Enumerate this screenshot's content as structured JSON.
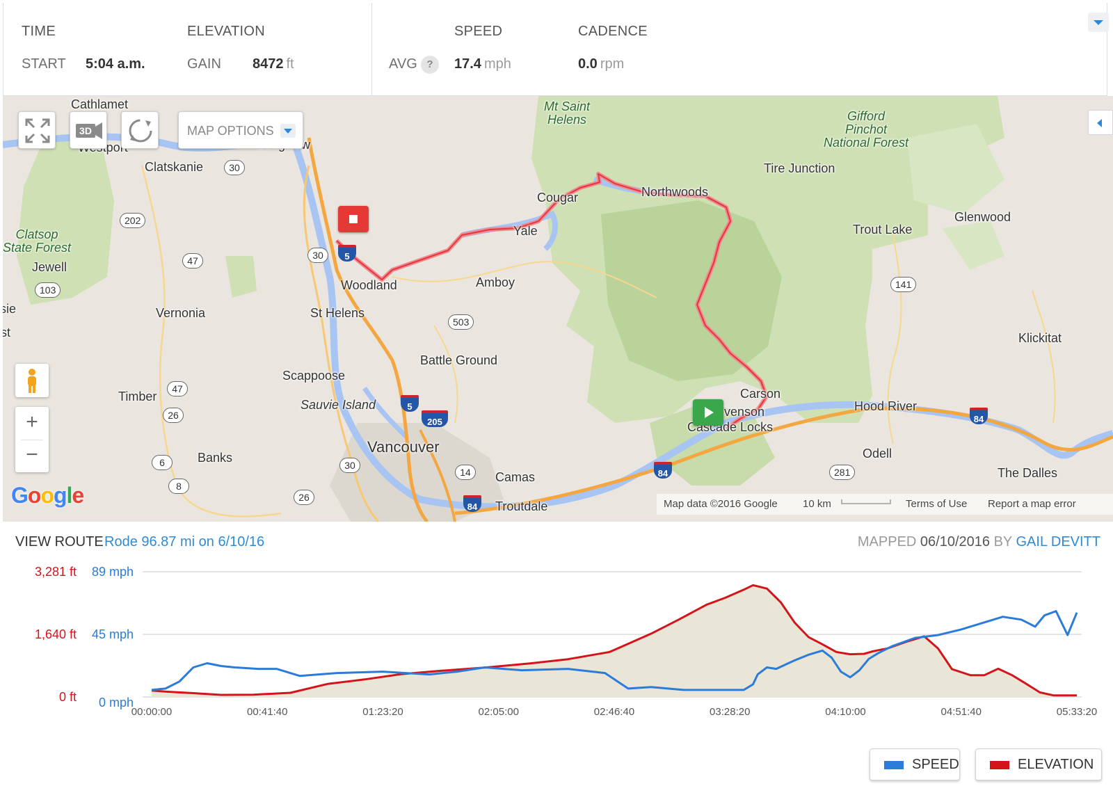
{
  "stats": {
    "time": {
      "header": "TIME",
      "label": "START",
      "value": "5:04 a.m."
    },
    "elevation": {
      "header": "ELEVATION",
      "label": "GAIN",
      "value": "8472",
      "unit": "ft"
    },
    "speed": {
      "header": "SPEED",
      "label": "AVG",
      "help": "?",
      "value": "17.4",
      "unit": "mph"
    },
    "cadence": {
      "header": "CADENCE",
      "value": "0.0",
      "unit": "rpm"
    }
  },
  "map": {
    "options_label": "MAP OPTIONS",
    "btn_3d": "3D",
    "zoom_in": "+",
    "zoom_out": "−",
    "logo": [
      "G",
      "o",
      "o",
      "g",
      "l",
      "e"
    ],
    "logo_colors": [
      "#4285f4",
      "#ea4335",
      "#fbbc05",
      "#4285f4",
      "#34a853",
      "#ea4335"
    ],
    "footer": {
      "data": "Map data ©2016 Google",
      "scale": "10 km",
      "terms": "Terms of Use",
      "report": "Report a map error"
    },
    "places": [
      {
        "id": "cathlamet",
        "text": "Cathlamet"
      },
      {
        "id": "westport",
        "text": "Westport"
      },
      {
        "id": "longview",
        "text": "Longview"
      },
      {
        "id": "clatskanie",
        "text": "Clatskanie"
      },
      {
        "id": "mt-saint-helens",
        "text": "Mt Saint\nHelens"
      },
      {
        "id": "gifford-pinchot",
        "text": "Gifford\nPinchot\nNational Forest"
      },
      {
        "id": "tire-junction",
        "text": "Tire Junction"
      },
      {
        "id": "cougar",
        "text": "Cougar"
      },
      {
        "id": "northwoods",
        "text": "Northwoods"
      },
      {
        "id": "yale",
        "text": "Yale"
      },
      {
        "id": "trout-lake",
        "text": "Trout Lake"
      },
      {
        "id": "glenwood",
        "text": "Glenwood"
      },
      {
        "id": "clatsop",
        "text": "Clatsop\nState Forest"
      },
      {
        "id": "jewell",
        "text": "Jewell"
      },
      {
        "id": "woodland",
        "text": "Woodland"
      },
      {
        "id": "amboy",
        "text": "Amboy"
      },
      {
        "id": "elsie",
        "text": "Elsie"
      },
      {
        "id": "vernonia",
        "text": "Vernonia"
      },
      {
        "id": "st-helens",
        "text": "St Helens"
      },
      {
        "id": "klickitat",
        "text": "Klickitat"
      },
      {
        "id": "mist",
        "text": "Mist"
      },
      {
        "id": "battle-ground",
        "text": "Battle Ground"
      },
      {
        "id": "scappoose",
        "text": "Scappoose"
      },
      {
        "id": "timber",
        "text": "Timber"
      },
      {
        "id": "carson",
        "text": "Carson"
      },
      {
        "id": "sauvie-island",
        "text": "Sauvie Island"
      },
      {
        "id": "stevenson",
        "text": "Stevenson"
      },
      {
        "id": "hood-river",
        "text": "Hood River"
      },
      {
        "id": "cascade-locks",
        "text": "Cascade Locks"
      },
      {
        "id": "vancouver",
        "text": "Vancouver"
      },
      {
        "id": "banks",
        "text": "Banks"
      },
      {
        "id": "odell",
        "text": "Odell"
      },
      {
        "id": "camas",
        "text": "Camas"
      },
      {
        "id": "the-dalles",
        "text": "The Dalles"
      },
      {
        "id": "troutdale",
        "text": "Troutdale"
      }
    ],
    "shields": [
      {
        "id": "us30-a",
        "text": "30"
      },
      {
        "id": "or202",
        "text": "202"
      },
      {
        "id": "or47-a",
        "text": "47"
      },
      {
        "id": "or103",
        "text": "103"
      },
      {
        "id": "us30-b",
        "text": "30"
      },
      {
        "id": "wa503",
        "text": "503"
      },
      {
        "id": "wa141",
        "text": "141"
      },
      {
        "id": "or47-b",
        "text": "47"
      },
      {
        "id": "us26-a",
        "text": "26"
      },
      {
        "id": "or6",
        "text": "6"
      },
      {
        "id": "or8",
        "text": "8"
      },
      {
        "id": "us30-c",
        "text": "30"
      },
      {
        "id": "wa14",
        "text": "14"
      },
      {
        "id": "or281",
        "text": "281"
      },
      {
        "id": "us26-b",
        "text": "26"
      }
    ],
    "interstates": [
      {
        "id": "i5-a",
        "text": "5"
      },
      {
        "id": "i5-b",
        "text": "5"
      },
      {
        "id": "i205",
        "text": "205"
      },
      {
        "id": "i84-a",
        "text": "84"
      },
      {
        "id": "i84-b",
        "text": "84"
      },
      {
        "id": "i84-c",
        "text": "84"
      }
    ]
  },
  "route": {
    "view_label": "VIEW ROUTE",
    "description": "Rode 96.87 mi on 6/10/16",
    "mapped_label": "MAPPED",
    "mapped_date": "06/10/2016",
    "by_label": "BY",
    "user": "GAIL DEVITT"
  },
  "chart_data": {
    "type": "line",
    "x_unit": "elapsed time (s)",
    "xlim": [
      0,
      20000
    ],
    "x_ticks": [
      0,
      2500,
      5000,
      7500,
      10000,
      12500,
      15000,
      17500,
      20000
    ],
    "x_tick_labels": [
      "00:00:00",
      "00:41:40",
      "01:23:20",
      "02:05:00",
      "02:46:40",
      "03:28:20",
      "04:10:00",
      "04:51:40",
      "05:33:20"
    ],
    "y_left_ticks": [
      {
        "v": 0,
        "label": "0 ft"
      },
      {
        "v": 1640,
        "label": "1,640 ft"
      },
      {
        "v": 3281,
        "label": "3,281 ft"
      }
    ],
    "y_right_ticks": [
      {
        "v": 0,
        "label": "0 mph"
      },
      {
        "v": 45,
        "label": "45 mph"
      },
      {
        "v": 89,
        "label": "89 mph"
      }
    ],
    "elevation_ylim": [
      0,
      3281
    ],
    "speed_ylim": [
      0,
      89
    ],
    "colors": {
      "speed": "#2b7bd9",
      "elevation": "#d4141b",
      "fill": "#e9e6d8"
    },
    "series": [
      {
        "name": "ELEVATION",
        "axis": "left",
        "x": [
          0,
          300,
          900,
          1500,
          2200,
          3000,
          3800,
          4600,
          5400,
          6300,
          7200,
          8100,
          9000,
          9900,
          10800,
          11400,
          12000,
          12400,
          12800,
          13000,
          13300,
          13600,
          13900,
          14200,
          14500,
          14800,
          15100,
          15400,
          15600,
          15900,
          16300,
          16700,
          17000,
          17300,
          17700,
          18000,
          18300,
          18600,
          18900,
          19200,
          19500,
          20000
        ],
        "y": [
          170,
          140,
          100,
          55,
          60,
          110,
          340,
          460,
          600,
          690,
          770,
          870,
          990,
          1180,
          1660,
          2030,
          2420,
          2600,
          2810,
          2930,
          2840,
          2480,
          1950,
          1570,
          1380,
          1180,
          1120,
          1130,
          1200,
          1270,
          1440,
          1590,
          1270,
          730,
          570,
          570,
          740,
          570,
          350,
          120,
          40,
          40
        ]
      },
      {
        "name": "SPEED",
        "axis": "right",
        "x": [
          0,
          300,
          600,
          900,
          1200,
          1500,
          1800,
          2300,
          2700,
          3200,
          4000,
          5000,
          6000,
          6600,
          7200,
          8000,
          9000,
          9800,
          10300,
          10800,
          11500,
          12200,
          12500,
          12800,
          13000,
          13100,
          13300,
          13500,
          13900,
          14200,
          14500,
          14700,
          14900,
          15100,
          15300,
          15500,
          15700,
          16000,
          16500,
          17000,
          17500,
          18000,
          18400,
          18800,
          19100,
          19300,
          19550,
          19800,
          20000
        ],
        "y": [
          5,
          6,
          11,
          21,
          24,
          22,
          21,
          20,
          20,
          15,
          17,
          18,
          16,
          18,
          21,
          19,
          20,
          17,
          6,
          7,
          5,
          5,
          5,
          5,
          9,
          16,
          21,
          20,
          26,
          30,
          33,
          28,
          18,
          14,
          19,
          27,
          31,
          36,
          42,
          44,
          48,
          53,
          57,
          55,
          50,
          58,
          61,
          44,
          60
        ]
      }
    ]
  },
  "legend": {
    "speed": "SPEED",
    "elevation": "ELEVATION"
  }
}
